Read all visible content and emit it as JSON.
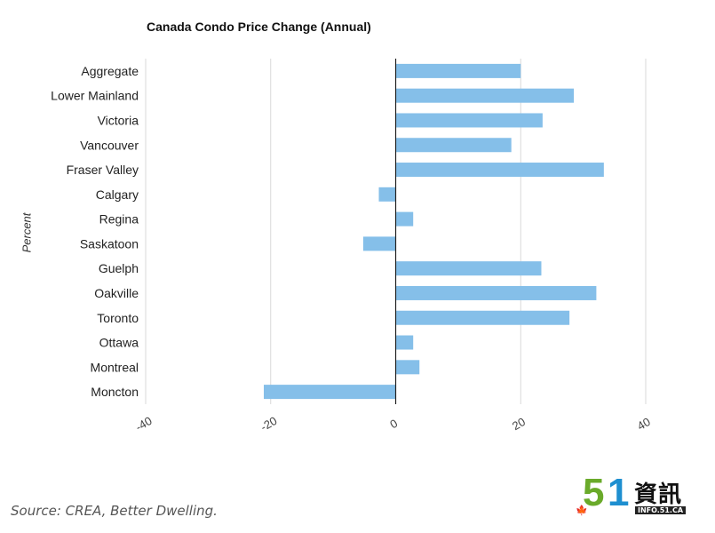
{
  "chart_data": {
    "type": "bar",
    "orientation": "horizontal",
    "title": "Canada Condo Price Change (Annual)",
    "ylabel": "Percent",
    "xlim": [
      -40,
      40
    ],
    "xticks": [
      -40,
      -20,
      0,
      20,
      40
    ],
    "grid": true,
    "bar_color": "#85bfe9",
    "categories": [
      "Aggregate",
      "Lower Mainland",
      "Victoria",
      "Vancouver",
      "Fraser Valley",
      "Calgary",
      "Regina",
      "Saskatoon",
      "Guelph",
      "Oakville",
      "Toronto",
      "Ottawa",
      "Montreal",
      "Moncton"
    ],
    "values": [
      20,
      28.5,
      23.5,
      18.5,
      33.3,
      -2.7,
      2.8,
      -5.2,
      23.3,
      32.1,
      27.8,
      2.8,
      3.8,
      -21.1
    ]
  },
  "source": "Source: CREA, Better Dwelling.",
  "watermark": {
    "number_5": "5",
    "number_1": "1",
    "chinese": "資訊",
    "subtext": "INFO.51.CA",
    "leaf": "🍁"
  }
}
